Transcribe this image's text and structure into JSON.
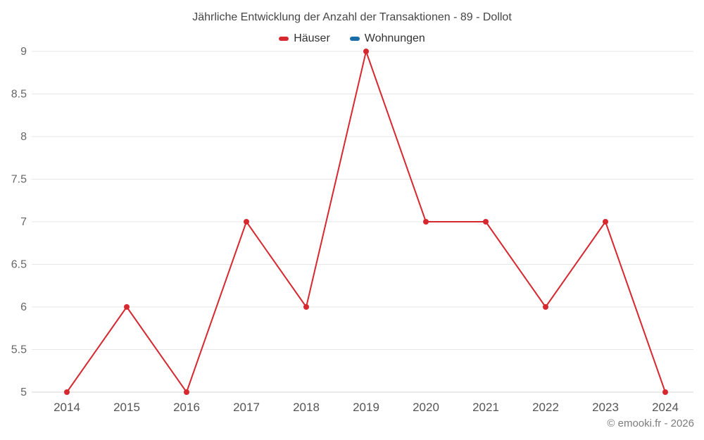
{
  "chart": {
    "footer": "© emooki.fr - 2026"
  },
  "chart_data": {
    "type": "line",
    "title": "Jährliche Entwicklung der Anzahl der Transaktionen - 89 - Dollot",
    "x": [
      2014,
      2015,
      2016,
      2017,
      2018,
      2019,
      2020,
      2021,
      2022,
      2023,
      2024
    ],
    "series": [
      {
        "name": "Häuser",
        "color": "#d7282f",
        "values": [
          5,
          6,
          5,
          7,
          6,
          9,
          7,
          7,
          6,
          7,
          5
        ]
      },
      {
        "name": "Wohnungen",
        "color": "#1a6ea8",
        "values": []
      }
    ],
    "xlabel": "",
    "ylabel": "",
    "ylim": [
      5,
      9
    ],
    "yticks": [
      5,
      5.5,
      6,
      6.5,
      7,
      7.5,
      8,
      8.5,
      9
    ],
    "grid": true,
    "legend_position": "top",
    "annotations": [
      "© emooki.fr - 2026"
    ]
  }
}
